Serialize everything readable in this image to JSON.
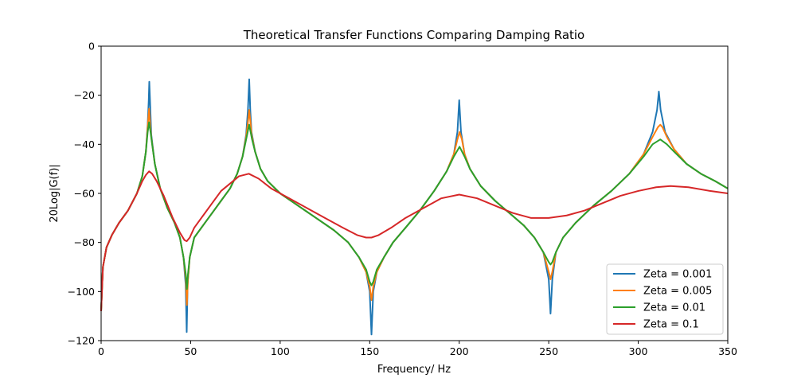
{
  "chart_data": {
    "type": "line",
    "title": "Theoretical Transfer Functions Comparing Damping Ratio",
    "xlabel": "Frequency/ Hz",
    "ylabel": "20Log|G(f)|",
    "xlim": [
      0,
      350
    ],
    "ylim": [
      -120,
      0
    ],
    "xticks": [
      0,
      50,
      100,
      150,
      200,
      250,
      300,
      350
    ],
    "yticks": [
      0,
      -20,
      -40,
      -60,
      -80,
      -100,
      -120
    ],
    "xtick_labels": [
      "0",
      "50",
      "100",
      "150",
      "200",
      "250",
      "300",
      "350"
    ],
    "ytick_labels": [
      "0",
      "−20",
      "−40",
      "−60",
      "−80",
      "−100",
      "−120"
    ],
    "grid": false,
    "legend_position": "lower-right",
    "series": [
      {
        "name": "Zeta = 0.001",
        "color": "#1f77b4",
        "points": [
          [
            0,
            -108
          ],
          [
            1,
            -90
          ],
          [
            3,
            -82
          ],
          [
            6,
            -77
          ],
          [
            10,
            -72
          ],
          [
            15,
            -67
          ],
          [
            20,
            -60
          ],
          [
            23,
            -53
          ],
          [
            25,
            -43
          ],
          [
            26,
            -32
          ],
          [
            26.6,
            -22
          ],
          [
            26.9,
            -14.5
          ],
          [
            27.3,
            -22
          ],
          [
            28,
            -36
          ],
          [
            30,
            -48
          ],
          [
            33,
            -58
          ],
          [
            37,
            -66
          ],
          [
            41,
            -72
          ],
          [
            44,
            -78
          ],
          [
            46,
            -86
          ],
          [
            47.2,
            -97
          ],
          [
            47.8,
            -116.5
          ],
          [
            48.3,
            -97
          ],
          [
            49.5,
            -86
          ],
          [
            52,
            -78
          ],
          [
            57,
            -73
          ],
          [
            62,
            -68
          ],
          [
            67,
            -63
          ],
          [
            72,
            -58
          ],
          [
            76,
            -52
          ],
          [
            79,
            -45
          ],
          [
            81,
            -36
          ],
          [
            82,
            -26
          ],
          [
            82.7,
            -13.5
          ],
          [
            83.3,
            -26
          ],
          [
            84,
            -35
          ],
          [
            86,
            -43
          ],
          [
            89,
            -50
          ],
          [
            93,
            -55
          ],
          [
            100,
            -60
          ],
          [
            110,
            -65
          ],
          [
            120,
            -70
          ],
          [
            130,
            -75
          ],
          [
            138,
            -80
          ],
          [
            144,
            -86
          ],
          [
            148,
            -92
          ],
          [
            150,
            -100
          ],
          [
            151,
            -117.5
          ],
          [
            152,
            -100
          ],
          [
            154,
            -92
          ],
          [
            158,
            -86
          ],
          [
            163,
            -80
          ],
          [
            170,
            -74
          ],
          [
            178,
            -67
          ],
          [
            186,
            -59
          ],
          [
            193,
            -51
          ],
          [
            197,
            -44
          ],
          [
            199,
            -35
          ],
          [
            200,
            -22
          ],
          [
            201,
            -35
          ],
          [
            203,
            -44
          ],
          [
            206,
            -50
          ],
          [
            212,
            -57
          ],
          [
            220,
            -63
          ],
          [
            228,
            -68
          ],
          [
            236,
            -73
          ],
          [
            242,
            -78
          ],
          [
            247,
            -84
          ],
          [
            250,
            -95
          ],
          [
            251,
            -109
          ],
          [
            252,
            -95
          ],
          [
            254,
            -84
          ],
          [
            258,
            -78
          ],
          [
            265,
            -72
          ],
          [
            275,
            -65
          ],
          [
            285,
            -59
          ],
          [
            295,
            -52
          ],
          [
            303,
            -44
          ],
          [
            308,
            -35
          ],
          [
            310.5,
            -26
          ],
          [
            311.5,
            -18.5
          ],
          [
            312.5,
            -26
          ],
          [
            315,
            -35
          ],
          [
            320,
            -42
          ],
          [
            327,
            -48
          ],
          [
            335,
            -52
          ],
          [
            343,
            -55
          ],
          [
            350,
            -58
          ]
        ]
      },
      {
        "name": "Zeta = 0.005",
        "color": "#ff7f0e",
        "points": [
          [
            0,
            -108
          ],
          [
            1,
            -90
          ],
          [
            3,
            -82
          ],
          [
            6,
            -77
          ],
          [
            10,
            -72
          ],
          [
            15,
            -67
          ],
          [
            20,
            -60
          ],
          [
            23,
            -53
          ],
          [
            25,
            -43
          ],
          [
            26,
            -33
          ],
          [
            26.8,
            -25.5
          ],
          [
            27.5,
            -33
          ],
          [
            28,
            -37
          ],
          [
            30,
            -48
          ],
          [
            33,
            -58
          ],
          [
            37,
            -66
          ],
          [
            41,
            -72
          ],
          [
            44,
            -78
          ],
          [
            46,
            -86
          ],
          [
            47.3,
            -95
          ],
          [
            47.9,
            -105.5
          ],
          [
            48.5,
            -95
          ],
          [
            49.5,
            -86
          ],
          [
            52,
            -78
          ],
          [
            57,
            -73
          ],
          [
            62,
            -68
          ],
          [
            67,
            -63
          ],
          [
            72,
            -58
          ],
          [
            76,
            -52
          ],
          [
            79,
            -45
          ],
          [
            81,
            -37
          ],
          [
            82,
            -31
          ],
          [
            82.7,
            -26
          ],
          [
            83.4,
            -31
          ],
          [
            84,
            -36
          ],
          [
            86,
            -43
          ],
          [
            89,
            -50
          ],
          [
            93,
            -55
          ],
          [
            100,
            -60
          ],
          [
            110,
            -65
          ],
          [
            120,
            -70
          ],
          [
            130,
            -75
          ],
          [
            138,
            -80
          ],
          [
            144,
            -86
          ],
          [
            148,
            -92
          ],
          [
            150,
            -98
          ],
          [
            151,
            -103.5
          ],
          [
            152,
            -98
          ],
          [
            154,
            -92
          ],
          [
            158,
            -86
          ],
          [
            163,
            -80
          ],
          [
            170,
            -74
          ],
          [
            178,
            -67
          ],
          [
            186,
            -59
          ],
          [
            193,
            -51
          ],
          [
            197,
            -44
          ],
          [
            199,
            -38
          ],
          [
            200.2,
            -35
          ],
          [
            201.5,
            -38
          ],
          [
            203,
            -44
          ],
          [
            206,
            -50
          ],
          [
            212,
            -57
          ],
          [
            220,
            -63
          ],
          [
            228,
            -68
          ],
          [
            236,
            -73
          ],
          [
            242,
            -78
          ],
          [
            247,
            -84
          ],
          [
            250,
            -92
          ],
          [
            251,
            -95
          ],
          [
            252,
            -92
          ],
          [
            254,
            -84
          ],
          [
            258,
            -78
          ],
          [
            265,
            -72
          ],
          [
            275,
            -65
          ],
          [
            285,
            -59
          ],
          [
            295,
            -52
          ],
          [
            303,
            -44
          ],
          [
            308,
            -37
          ],
          [
            311,
            -33
          ],
          [
            312.3,
            -32
          ],
          [
            313.5,
            -33
          ],
          [
            316,
            -37
          ],
          [
            320,
            -42
          ],
          [
            327,
            -48
          ],
          [
            335,
            -52
          ],
          [
            343,
            -55
          ],
          [
            350,
            -58
          ]
        ]
      },
      {
        "name": "Zeta = 0.01",
        "color": "#2ca02c",
        "points": [
          [
            0,
            -108
          ],
          [
            1,
            -90
          ],
          [
            3,
            -82
          ],
          [
            6,
            -77
          ],
          [
            10,
            -72
          ],
          [
            15,
            -67
          ],
          [
            20,
            -60
          ],
          [
            23,
            -53
          ],
          [
            25,
            -43
          ],
          [
            26,
            -35
          ],
          [
            26.8,
            -31
          ],
          [
            27.6,
            -35
          ],
          [
            28.5,
            -40
          ],
          [
            30,
            -48
          ],
          [
            33,
            -58
          ],
          [
            37,
            -66
          ],
          [
            41,
            -72
          ],
          [
            44,
            -78
          ],
          [
            46,
            -86
          ],
          [
            47.3,
            -93
          ],
          [
            47.9,
            -99
          ],
          [
            48.5,
            -93
          ],
          [
            49.5,
            -86
          ],
          [
            52,
            -78
          ],
          [
            57,
            -73
          ],
          [
            62,
            -68
          ],
          [
            67,
            -63
          ],
          [
            72,
            -58
          ],
          [
            76,
            -52
          ],
          [
            79,
            -45
          ],
          [
            81,
            -38
          ],
          [
            82.7,
            -32
          ],
          [
            84.3,
            -38
          ],
          [
            86,
            -43
          ],
          [
            89,
            -50
          ],
          [
            93,
            -55
          ],
          [
            100,
            -60
          ],
          [
            110,
            -65
          ],
          [
            120,
            -70
          ],
          [
            130,
            -75
          ],
          [
            138,
            -80
          ],
          [
            144,
            -86
          ],
          [
            148,
            -91
          ],
          [
            150,
            -96
          ],
          [
            151,
            -97.5
          ],
          [
            152,
            -96
          ],
          [
            154,
            -91
          ],
          [
            158,
            -86
          ],
          [
            163,
            -80
          ],
          [
            170,
            -74
          ],
          [
            178,
            -67
          ],
          [
            186,
            -59
          ],
          [
            193,
            -51
          ],
          [
            197,
            -45
          ],
          [
            200.2,
            -41
          ],
          [
            203,
            -45
          ],
          [
            206,
            -50
          ],
          [
            212,
            -57
          ],
          [
            220,
            -63
          ],
          [
            228,
            -68
          ],
          [
            236,
            -73
          ],
          [
            242,
            -78
          ],
          [
            247,
            -84
          ],
          [
            250,
            -88
          ],
          [
            251,
            -89
          ],
          [
            252,
            -88
          ],
          [
            254,
            -84
          ],
          [
            258,
            -78
          ],
          [
            265,
            -72
          ],
          [
            275,
            -65
          ],
          [
            285,
            -59
          ],
          [
            295,
            -52
          ],
          [
            303,
            -45
          ],
          [
            308,
            -40
          ],
          [
            312.3,
            -38
          ],
          [
            316,
            -40
          ],
          [
            320,
            -43
          ],
          [
            327,
            -48
          ],
          [
            335,
            -52
          ],
          [
            343,
            -55
          ],
          [
            350,
            -58
          ]
        ]
      },
      {
        "name": "Zeta = 0.1",
        "color": "#d62728",
        "points": [
          [
            0,
            -108
          ],
          [
            1,
            -90
          ],
          [
            3,
            -82
          ],
          [
            6,
            -77
          ],
          [
            10,
            -72
          ],
          [
            15,
            -67
          ],
          [
            20,
            -60
          ],
          [
            23,
            -55
          ],
          [
            25,
            -52.5
          ],
          [
            26.8,
            -51
          ],
          [
            28.5,
            -52
          ],
          [
            31,
            -55
          ],
          [
            35,
            -61
          ],
          [
            40,
            -70
          ],
          [
            44,
            -76
          ],
          [
            46.5,
            -79
          ],
          [
            47.8,
            -79.5
          ],
          [
            49.5,
            -78
          ],
          [
            52,
            -74
          ],
          [
            57,
            -69
          ],
          [
            62,
            -64
          ],
          [
            67,
            -59
          ],
          [
            72,
            -56
          ],
          [
            77,
            -53
          ],
          [
            82.5,
            -52
          ],
          [
            88,
            -54
          ],
          [
            95,
            -58
          ],
          [
            105,
            -62
          ],
          [
            115,
            -66
          ],
          [
            125,
            -70
          ],
          [
            135,
            -74
          ],
          [
            143,
            -77
          ],
          [
            148,
            -78
          ],
          [
            151,
            -78
          ],
          [
            155,
            -77
          ],
          [
            162,
            -74
          ],
          [
            170,
            -70
          ],
          [
            180,
            -66
          ],
          [
            190,
            -62
          ],
          [
            200,
            -60.5
          ],
          [
            210,
            -62
          ],
          [
            220,
            -65
          ],
          [
            230,
            -68
          ],
          [
            240,
            -70
          ],
          [
            250,
            -70
          ],
          [
            260,
            -69
          ],
          [
            270,
            -67
          ],
          [
            280,
            -64
          ],
          [
            290,
            -61
          ],
          [
            300,
            -59
          ],
          [
            310,
            -57.5
          ],
          [
            318,
            -57
          ],
          [
            328,
            -57.5
          ],
          [
            340,
            -59
          ],
          [
            350,
            -60
          ]
        ]
      }
    ]
  }
}
